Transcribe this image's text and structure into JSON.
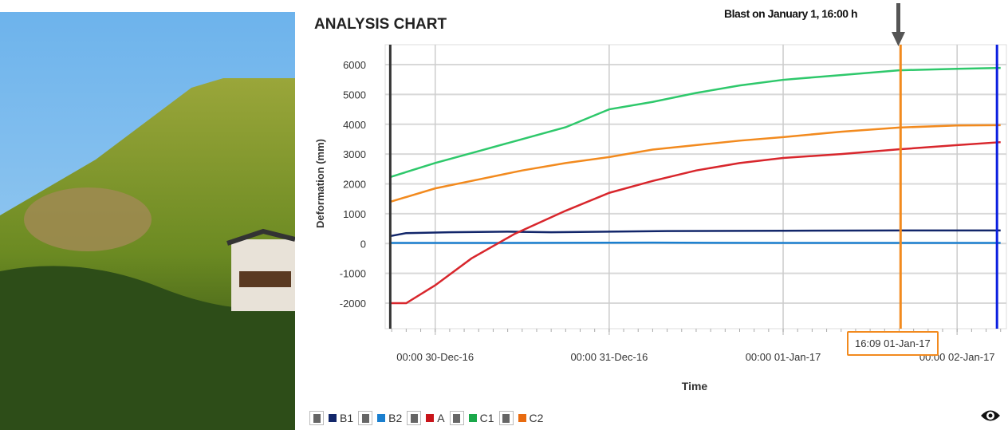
{
  "title": "ANALYSIS CHART",
  "annotation": "Blast on January 1, 16:00 h",
  "cursor_label": "16:09 01-Jan-17",
  "chart_data": {
    "type": "line",
    "title": "ANALYSIS CHART",
    "xlabel": "Time",
    "ylabel": "Deformation (mm)",
    "x_unit": "hours since 00:00 30-Dec-16",
    "xlim": [
      -6.9,
      78.8
    ],
    "ylim": [
      -2000,
      6000
    ],
    "yticks": [
      6000,
      5000,
      4000,
      3000,
      2000,
      1000,
      0,
      -1000,
      -2000
    ],
    "xticks": [
      {
        "h": 0,
        "label": "00:00 30-Dec-16"
      },
      {
        "h": 24,
        "label": "00:00 31-Dec-16"
      },
      {
        "h": 48,
        "label": "00:00 01-Jan-17"
      },
      {
        "h": 72,
        "label": "00:00 02-Jan-17"
      }
    ],
    "grid": true,
    "markers": [
      {
        "h": -6.2,
        "color": "#333333"
      },
      {
        "h": 64.2,
        "color": "#f28a1e"
      },
      {
        "h": 77.5,
        "color": "#0a1ee0"
      }
    ],
    "series": [
      {
        "name": "B1",
        "color": "#12266a",
        "x": [
          -6.2,
          -4,
          2,
          10,
          16,
          32,
          48,
          64,
          78
        ],
        "y": [
          250,
          350,
          380,
          400,
          380,
          420,
          430,
          440,
          440
        ]
      },
      {
        "name": "B2",
        "color": "#1a7fcf",
        "x": [
          -6.2,
          10,
          30,
          48,
          64,
          78
        ],
        "y": [
          20,
          20,
          30,
          20,
          20,
          20
        ]
      },
      {
        "name": "A",
        "color": "#d8262c",
        "x": [
          -6.2,
          -4,
          0,
          5,
          11,
          18,
          24,
          30,
          36,
          42,
          48,
          56,
          64,
          72,
          78
        ],
        "y": [
          -2000,
          -2000,
          -1400,
          -500,
          330,
          1100,
          1700,
          2100,
          2450,
          2700,
          2870,
          3000,
          3160,
          3300,
          3400
        ]
      },
      {
        "name": "C1",
        "color": "#2ec86b",
        "x": [
          -6.2,
          0,
          6,
          12,
          18,
          24,
          30,
          36,
          42,
          48,
          56,
          64,
          72,
          78
        ],
        "y": [
          2230,
          2700,
          3100,
          3500,
          3900,
          4500,
          4750,
          5050,
          5300,
          5490,
          5650,
          5810,
          5860,
          5890
        ]
      },
      {
        "name": "C2",
        "color": "#f28a1e",
        "x": [
          -6.2,
          0,
          6,
          12,
          18,
          24,
          30,
          36,
          42,
          48,
          56,
          64,
          72,
          78
        ],
        "y": [
          1400,
          1850,
          2150,
          2450,
          2700,
          2900,
          3150,
          3300,
          3450,
          3570,
          3750,
          3890,
          3960,
          3970
        ]
      }
    ]
  },
  "legend": [
    {
      "label": "B1",
      "color": "#12266a"
    },
    {
      "label": "B2",
      "color": "#1a7fcf"
    },
    {
      "label": "A",
      "color": "#c8141a"
    },
    {
      "label": "C1",
      "color": "#1aa84a"
    },
    {
      "label": "C2",
      "color": "#e86b10"
    }
  ]
}
